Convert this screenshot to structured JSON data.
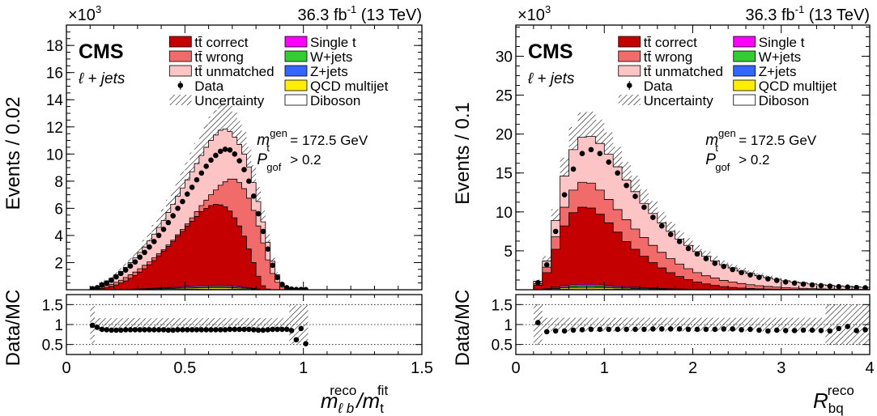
{
  "colors": {
    "tt_correct": "#c40000",
    "tt_wrong": "#f26b6b",
    "tt_unmatched": "#fcc4c4",
    "single_t": "#ff00ff",
    "w_jets": "#33cc33",
    "z_jets": "#3366ff",
    "qcd": "#ffee00",
    "diboson": "#ffffff"
  },
  "chart_data": [
    {
      "type": "area",
      "stacked": true,
      "lumi_label": "36.3 fb-1 (13 TeV)",
      "lumi_value": "36.3 fb",
      "lumi_sup": "-1",
      "lumi_energy": "(13 TeV)",
      "exponent_label": "×10",
      "exponent_sup": "3",
      "cms_label": "CMS",
      "channel_label": "ℓ + jets",
      "mgen_label": "m",
      "mgen_sub": "t",
      "mgen_sup": "gen",
      "mgen_value": "= 172.5 GeV",
      "pgof_label": "P",
      "pgof_sub": "gof",
      "pgof_value": "> 0.2",
      "ylabel": "Events / 0.02",
      "ratio_ylabel": "Data/MC",
      "xlabel_main": "m",
      "xlabel_sub": "ℓ b",
      "xlabel_sup": "reco",
      "xlabel_div": "/m",
      "xlabel_div_sub": "t",
      "xlabel_div_sup": "fit",
      "xlim": [
        0,
        1.5
      ],
      "ylim": [
        0,
        19.5
      ],
      "ratio_ylim": [
        0.25,
        1.75
      ],
      "xticks": [
        "0",
        "0.5",
        "1",
        "1.5"
      ],
      "yticks": [
        "2",
        "4",
        "6",
        "8",
        "10",
        "12",
        "14",
        "16",
        "18"
      ],
      "ratio_yticks": [
        "0.5",
        "1",
        "1.5"
      ],
      "legend": [
        {
          "label": "tt̄ correct",
          "key": "tt_correct"
        },
        {
          "label": "tt̄ wrong",
          "key": "tt_wrong"
        },
        {
          "label": "tt̄ unmatched",
          "key": "tt_unmatched"
        },
        {
          "label": "Data",
          "key": "data"
        },
        {
          "label": "Uncertainty",
          "key": "unc"
        },
        {
          "label": "Single t",
          "key": "single_t"
        },
        {
          "label": "W+jets",
          "key": "w_jets"
        },
        {
          "label": "Z+jets",
          "key": "z_jets"
        },
        {
          "label": "QCD multijet",
          "key": "qcd"
        },
        {
          "label": "Diboson",
          "key": "diboson"
        }
      ],
      "x0": 0.08,
      "bin_width": 0.02,
      "correct": [
        0,
        0,
        0,
        0.1,
        0.15,
        0.25,
        0.35,
        0.5,
        0.65,
        0.85,
        1.05,
        1.3,
        1.55,
        1.85,
        2.15,
        2.5,
        2.85,
        3.2,
        3.55,
        3.95,
        4.3,
        4.7,
        5.05,
        5.4,
        5.75,
        6.0,
        6.2,
        6.3,
        6.25,
        6.1,
        5.8,
        5.3,
        4.7,
        3.95,
        3.0,
        2.0,
        1.0,
        0.3,
        0.05,
        0,
        0,
        0,
        0,
        0,
        0,
        0,
        0,
        0
      ],
      "wrong": [
        0,
        0,
        0.02,
        0.2,
        0.3,
        0.4,
        0.55,
        0.7,
        0.9,
        1.1,
        1.3,
        1.55,
        1.8,
        2.05,
        2.35,
        2.65,
        2.95,
        3.3,
        3.65,
        4.05,
        4.45,
        4.85,
        5.3,
        5.75,
        6.2,
        6.6,
        7.0,
        7.35,
        7.7,
        7.95,
        8.15,
        8.15,
        7.9,
        7.45,
        6.75,
        5.85,
        4.7,
        3.45,
        2.2,
        1.2,
        0.55,
        0.2,
        0.05,
        0,
        0,
        0,
        0,
        0
      ],
      "unmatched": [
        0,
        0.1,
        0.2,
        0.5,
        0.65,
        0.85,
        1.1,
        1.35,
        1.65,
        2.0,
        2.35,
        2.75,
        3.15,
        3.6,
        4.1,
        4.6,
        5.1,
        5.7,
        6.3,
        6.9,
        7.5,
        8.1,
        8.7,
        9.3,
        9.9,
        10.5,
        11.0,
        11.4,
        11.75,
        11.85,
        11.65,
        11.25,
        10.7,
        10.0,
        9.05,
        7.9,
        6.5,
        5.0,
        3.5,
        2.1,
        1.1,
        0.45,
        0.15,
        0.05,
        0.02,
        0.02,
        0.01,
        0
      ],
      "other_max": 0.35,
      "data": [
        0,
        0.08,
        0.15,
        0.35,
        0.5,
        0.7,
        0.95,
        1.2,
        1.45,
        1.75,
        2.05,
        2.4,
        2.75,
        3.15,
        3.55,
        4.0,
        4.45,
        4.95,
        5.45,
        6.0,
        6.5,
        7.05,
        7.55,
        8.1,
        8.6,
        9.1,
        9.55,
        9.9,
        10.2,
        10.35,
        10.3,
        10.0,
        9.5,
        8.85,
        8.0,
        6.9,
        5.6,
        4.3,
        3.0,
        1.8,
        0.9,
        0.4,
        0.15,
        0.05,
        0.02,
        0.02,
        0.01,
        0
      ],
      "ratio": [
        null,
        0.98,
        0.93,
        0.88,
        0.87,
        0.86,
        0.86,
        0.86,
        0.87,
        0.87,
        0.87,
        0.87,
        0.87,
        0.87,
        0.87,
        0.87,
        0.87,
        0.86,
        0.86,
        0.87,
        0.87,
        0.87,
        0.87,
        0.87,
        0.87,
        0.87,
        0.87,
        0.87,
        0.87,
        0.87,
        0.88,
        0.88,
        0.88,
        0.88,
        0.88,
        0.87,
        0.86,
        0.86,
        0.87,
        0.88,
        0.88,
        0.88,
        0.88,
        0.85,
        0.62,
        0.9,
        0.52,
        null
      ]
    },
    {
      "type": "area",
      "stacked": true,
      "lumi_label": "36.3 fb-1 (13 TeV)",
      "lumi_value": "36.3 fb",
      "lumi_sup": "-1",
      "lumi_energy": "(13 TeV)",
      "exponent_label": "×10",
      "exponent_sup": "3",
      "cms_label": "CMS",
      "channel_label": "ℓ + jets",
      "mgen_label": "m",
      "mgen_sub": "t",
      "mgen_sup": "gen",
      "mgen_value": "= 172.5 GeV",
      "pgof_label": "P",
      "pgof_sub": "gof",
      "pgof_value": "> 0.2",
      "ylabel": "Events / 0.1",
      "ratio_ylabel": "Data/MC",
      "xlabel_main": "R",
      "xlabel_sub": "bq",
      "xlabel_sup": "reco",
      "xlim": [
        0,
        4
      ],
      "ylim": [
        0,
        34
      ],
      "ratio_ylim": [
        0.25,
        1.75
      ],
      "xticks": [
        "0",
        "1",
        "2",
        "3",
        "4"
      ],
      "yticks": [
        "5",
        "10",
        "15",
        "20",
        "25",
        "30"
      ],
      "ratio_yticks": [
        "0.5",
        "1",
        "1.5"
      ],
      "legend": [
        {
          "label": "tt̄ correct",
          "key": "tt_correct"
        },
        {
          "label": "tt̄ wrong",
          "key": "tt_wrong"
        },
        {
          "label": "tt̄ unmatched",
          "key": "tt_unmatched"
        },
        {
          "label": "Data",
          "key": "data"
        },
        {
          "label": "Uncertainty",
          "key": "unc"
        },
        {
          "label": "Single t",
          "key": "single_t"
        },
        {
          "label": "W+jets",
          "key": "w_jets"
        },
        {
          "label": "Z+jets",
          "key": "z_jets"
        },
        {
          "label": "QCD multijet",
          "key": "qcd"
        },
        {
          "label": "Diboson",
          "key": "diboson"
        }
      ],
      "x0": 0.1,
      "bin_width": 0.1,
      "correct": [
        0,
        0.6,
        2.2,
        5.2,
        8.2,
        9.9,
        10.6,
        10.5,
        9.7,
        8.6,
        7.4,
        6.2,
        5.2,
        4.3,
        3.5,
        2.8,
        2.2,
        1.7,
        1.3,
        1.0,
        0.75,
        0.55,
        0.4,
        0.3,
        0.22,
        0.16,
        0.12,
        0.09,
        0.07,
        0.05,
        0.04,
        0.03,
        0.02,
        0.02,
        0.01,
        0.01,
        0.01,
        0.01,
        0.01
      ],
      "wrong": [
        0,
        0.8,
        2.9,
        6.8,
        10.6,
        12.8,
        13.8,
        13.7,
        12.8,
        11.6,
        10.3,
        9.0,
        7.8,
        6.7,
        5.7,
        4.8,
        4.0,
        3.3,
        2.7,
        2.2,
        1.8,
        1.5,
        1.2,
        1.0,
        0.8,
        0.65,
        0.52,
        0.42,
        0.34,
        0.27,
        0.22,
        0.18,
        0.14,
        0.11,
        0.09,
        0.07,
        0.06,
        0.05,
        0.04
      ],
      "unmatched": [
        0,
        1.1,
        3.7,
        8.9,
        14.6,
        18.0,
        19.6,
        19.7,
        18.8,
        17.4,
        15.8,
        14.1,
        12.6,
        11.1,
        9.8,
        8.6,
        7.5,
        6.5,
        5.7,
        4.9,
        4.3,
        3.7,
        3.2,
        2.8,
        2.4,
        2.1,
        1.8,
        1.55,
        1.35,
        1.15,
        1.0,
        0.86,
        0.74,
        0.64,
        0.55,
        0.48,
        0.42,
        0.36,
        0.31
      ],
      "other_max": 0.7,
      "data": [
        0,
        0.9,
        3.2,
        7.5,
        12.2,
        15.5,
        17.5,
        18.0,
        17.5,
        16.4,
        15.0,
        13.4,
        12.0,
        10.6,
        9.3,
        8.2,
        7.1,
        6.2,
        5.3,
        4.6,
        4.0,
        3.4,
        3.0,
        2.6,
        2.2,
        1.9,
        1.6,
        1.4,
        1.2,
        1.0,
        0.85,
        0.72,
        0.62,
        0.53,
        0.46,
        0.4,
        0.34,
        0.29,
        0.25
      ],
      "ratio": [
        null,
        1.05,
        0.82,
        0.84,
        0.84,
        0.86,
        0.87,
        0.88,
        0.88,
        0.88,
        0.88,
        0.88,
        0.88,
        0.88,
        0.89,
        0.89,
        0.89,
        0.89,
        0.88,
        0.88,
        0.88,
        0.88,
        0.89,
        0.89,
        0.87,
        0.88,
        0.86,
        0.84,
        0.86,
        0.85,
        0.85,
        0.86,
        0.86,
        0.85,
        0.84,
        0.9,
        0.95,
        0.85,
        0.87
      ]
    }
  ]
}
